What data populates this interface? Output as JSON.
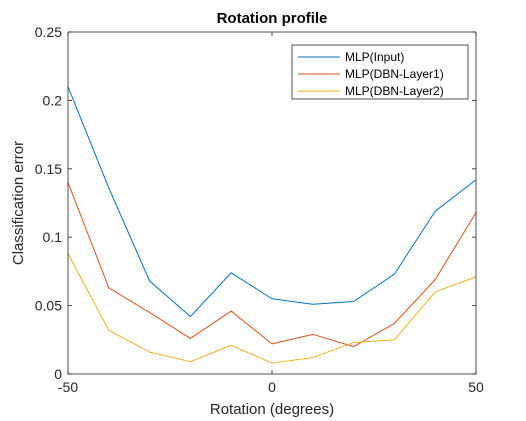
{
  "chart_data": {
    "type": "line",
    "title": "Rotation profile",
    "xlabel": "Rotation (degrees)",
    "ylabel": "Classification error",
    "xlim": [
      -50,
      50
    ],
    "ylim": [
      0,
      0.25
    ],
    "xticks": [
      -50,
      0,
      50
    ],
    "xtick_labels": [
      "-50",
      "0",
      "50"
    ],
    "yticks": [
      0,
      0.05,
      0.1,
      0.15,
      0.2,
      0.25
    ],
    "ytick_labels": [
      "0",
      "0.05",
      "0.1",
      "0.15",
      "0.2",
      "0.25"
    ],
    "grid": false,
    "legend_position": "top-right",
    "x": [
      -50,
      -40,
      -30,
      -20,
      -10,
      0,
      10,
      20,
      30,
      40,
      50
    ],
    "series": [
      {
        "name": "MLP(Input)",
        "color": "#0072bd",
        "values": [
          0.21,
          0.136,
          0.068,
          0.042,
          0.074,
          0.055,
          0.051,
          0.053,
          0.073,
          0.119,
          0.142
        ]
      },
      {
        "name": "MLP(DBN-Layer1)",
        "color": "#d95319",
        "values": [
          0.14,
          0.063,
          0.045,
          0.026,
          0.046,
          0.022,
          0.029,
          0.02,
          0.037,
          0.069,
          0.118
        ]
      },
      {
        "name": "MLP(DBN-Layer2)",
        "color": "#edb120",
        "values": [
          0.088,
          0.032,
          0.016,
          0.009,
          0.021,
          0.008,
          0.012,
          0.023,
          0.025,
          0.06,
          0.071
        ]
      }
    ]
  }
}
